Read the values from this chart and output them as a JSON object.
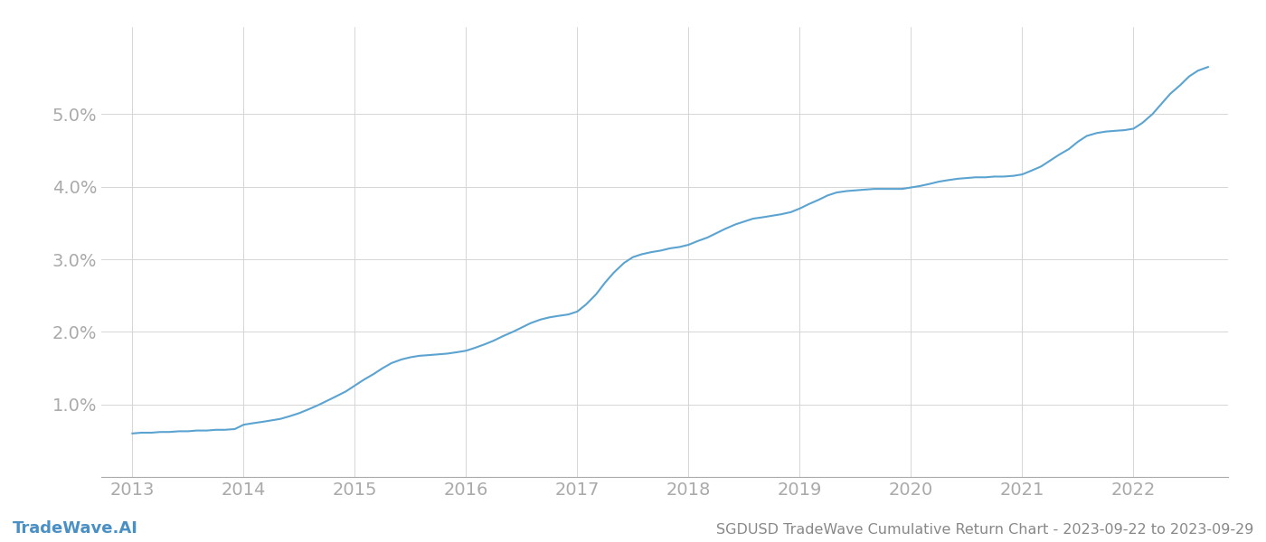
{
  "title": "SGDUSD TradeWave Cumulative Return Chart - 2023-09-22 to 2023-09-29",
  "watermark": "TradeWave.AI",
  "line_color": "#5ba3d0",
  "background_color": "#ffffff",
  "grid_color": "#d0d0d0",
  "x_years": [
    2013,
    2014,
    2015,
    2016,
    2017,
    2018,
    2019,
    2020,
    2021,
    2022
  ],
  "x_data": [
    2013.0,
    2013.08,
    2013.17,
    2013.25,
    2013.33,
    2013.42,
    2013.5,
    2013.58,
    2013.67,
    2013.75,
    2013.83,
    2013.92,
    2014.0,
    2014.08,
    2014.17,
    2014.25,
    2014.33,
    2014.42,
    2014.5,
    2014.58,
    2014.67,
    2014.75,
    2014.83,
    2014.92,
    2015.0,
    2015.08,
    2015.17,
    2015.25,
    2015.33,
    2015.42,
    2015.5,
    2015.58,
    2015.67,
    2015.75,
    2015.83,
    2015.92,
    2016.0,
    2016.08,
    2016.17,
    2016.25,
    2016.33,
    2016.42,
    2016.5,
    2016.58,
    2016.67,
    2016.75,
    2016.83,
    2016.92,
    2017.0,
    2017.08,
    2017.17,
    2017.25,
    2017.33,
    2017.42,
    2017.5,
    2017.58,
    2017.67,
    2017.75,
    2017.83,
    2017.92,
    2018.0,
    2018.08,
    2018.17,
    2018.25,
    2018.33,
    2018.42,
    2018.5,
    2018.58,
    2018.67,
    2018.75,
    2018.83,
    2018.92,
    2019.0,
    2019.08,
    2019.17,
    2019.25,
    2019.33,
    2019.42,
    2019.5,
    2019.58,
    2019.67,
    2019.75,
    2019.83,
    2019.92,
    2020.0,
    2020.08,
    2020.17,
    2020.25,
    2020.33,
    2020.42,
    2020.5,
    2020.58,
    2020.67,
    2020.75,
    2020.83,
    2020.92,
    2021.0,
    2021.08,
    2021.17,
    2021.25,
    2021.33,
    2021.42,
    2021.5,
    2021.58,
    2021.67,
    2021.75,
    2021.83,
    2021.92,
    2022.0,
    2022.08,
    2022.17,
    2022.25,
    2022.33,
    2022.42,
    2022.5,
    2022.58,
    2022.67
  ],
  "y_data": [
    0.6,
    0.61,
    0.61,
    0.62,
    0.62,
    0.63,
    0.63,
    0.64,
    0.64,
    0.65,
    0.65,
    0.66,
    0.72,
    0.74,
    0.76,
    0.78,
    0.8,
    0.84,
    0.88,
    0.93,
    0.99,
    1.05,
    1.11,
    1.18,
    1.26,
    1.34,
    1.42,
    1.5,
    1.57,
    1.62,
    1.65,
    1.67,
    1.68,
    1.69,
    1.7,
    1.72,
    1.74,
    1.78,
    1.83,
    1.88,
    1.94,
    2.0,
    2.06,
    2.12,
    2.17,
    2.2,
    2.22,
    2.24,
    2.28,
    2.38,
    2.52,
    2.68,
    2.82,
    2.95,
    3.03,
    3.07,
    3.1,
    3.12,
    3.15,
    3.17,
    3.2,
    3.25,
    3.3,
    3.36,
    3.42,
    3.48,
    3.52,
    3.56,
    3.58,
    3.6,
    3.62,
    3.65,
    3.7,
    3.76,
    3.82,
    3.88,
    3.92,
    3.94,
    3.95,
    3.96,
    3.97,
    3.97,
    3.97,
    3.97,
    3.99,
    4.01,
    4.04,
    4.07,
    4.09,
    4.11,
    4.12,
    4.13,
    4.13,
    4.14,
    4.14,
    4.15,
    4.17,
    4.22,
    4.28,
    4.36,
    4.44,
    4.52,
    4.62,
    4.7,
    4.74,
    4.76,
    4.77,
    4.78,
    4.8,
    4.88,
    5.0,
    5.14,
    5.28,
    5.4,
    5.52,
    5.6,
    5.65
  ],
  "ylim": [
    0.0,
    6.2
  ],
  "yticks": [
    1.0,
    2.0,
    3.0,
    4.0,
    5.0
  ],
  "xlim": [
    2012.72,
    2022.85
  ],
  "tick_label_color": "#aaaaaa",
  "axis_color": "#aaaaaa",
  "title_color": "#888888",
  "watermark_color": "#4a90c4",
  "line_width": 1.5,
  "tick_fontsize": 14,
  "title_fontsize": 11.5,
  "watermark_fontsize": 13
}
